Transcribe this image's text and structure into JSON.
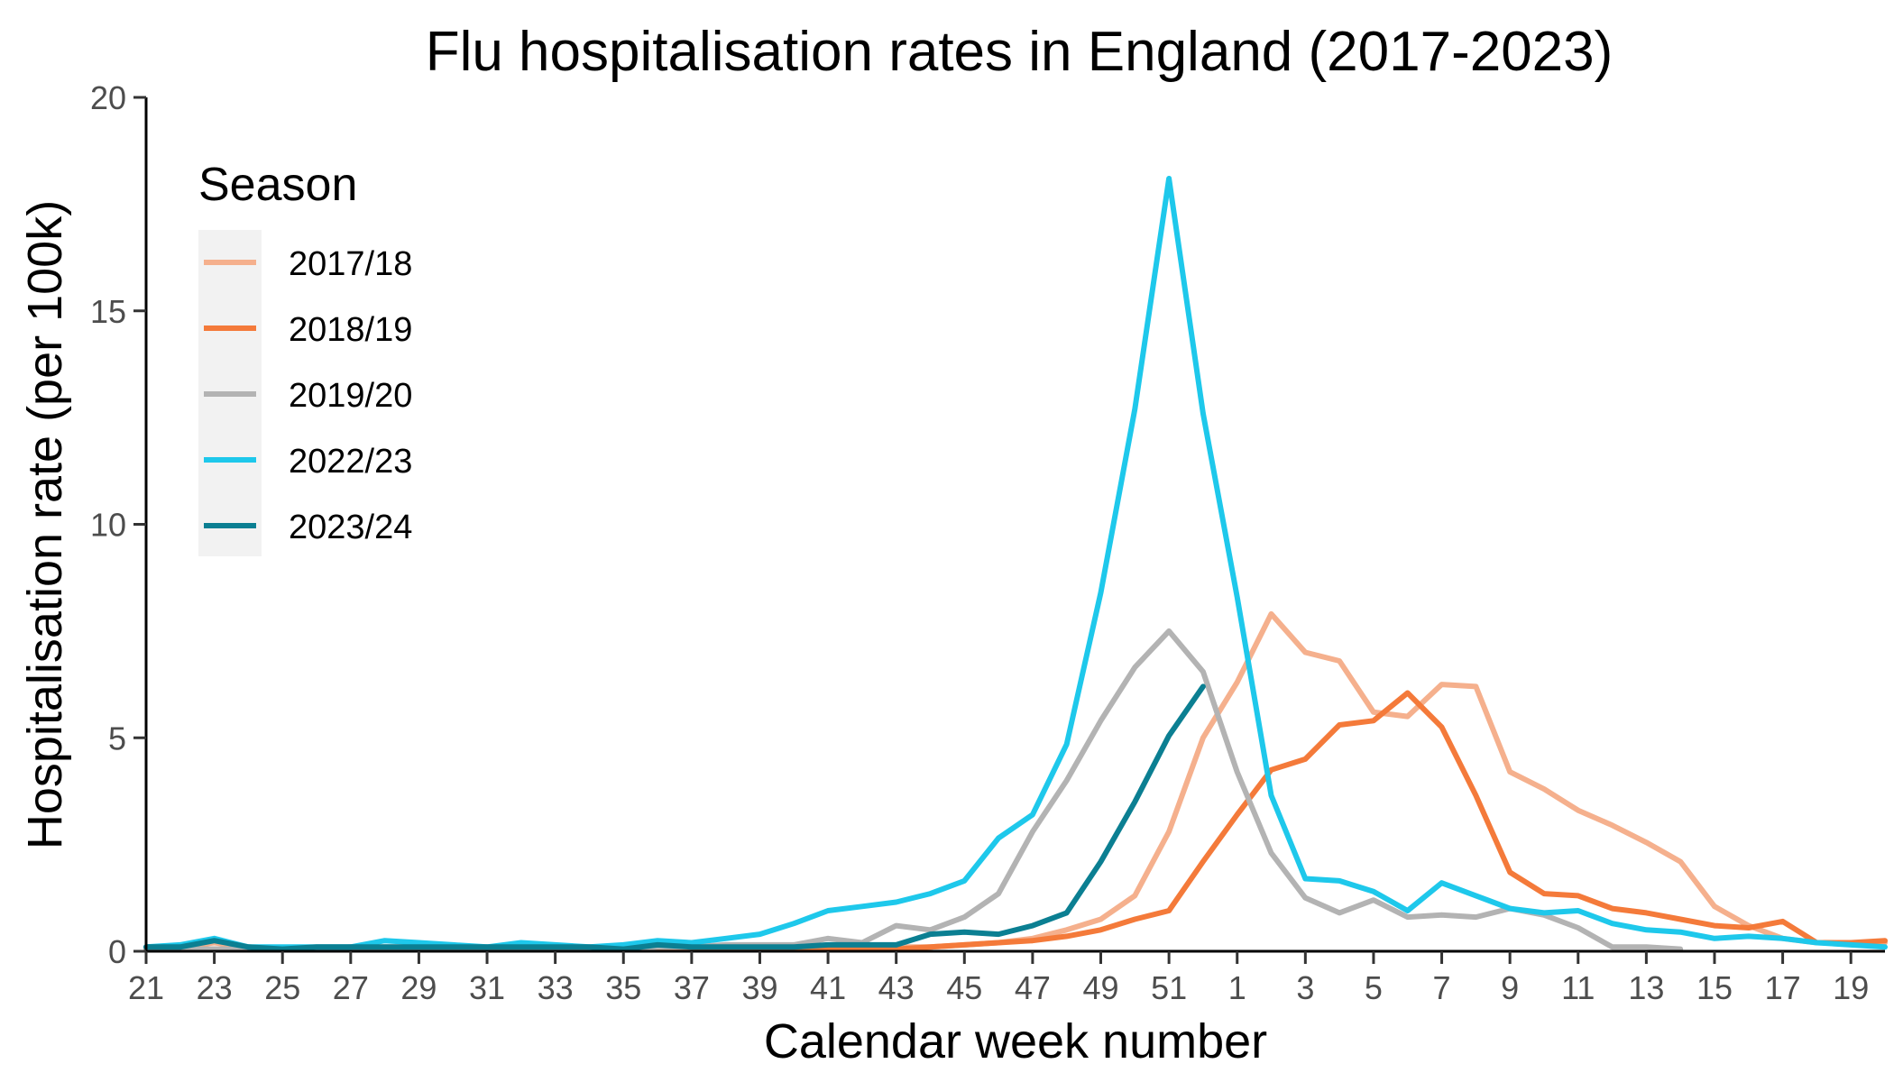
{
  "chart_data": {
    "type": "line",
    "title": "Flu hospitalisation rates in England (2017-2023)",
    "xlabel": "Calendar week number",
    "ylabel": "Hospitalisation rate (per 100k)",
    "ylim": [
      0,
      20
    ],
    "yticks": [
      0,
      5,
      10,
      15,
      20
    ],
    "grid": false,
    "legend": {
      "title": "Season",
      "position": "top-left"
    },
    "x_weeks": [
      21,
      22,
      23,
      24,
      25,
      26,
      27,
      28,
      29,
      30,
      31,
      32,
      33,
      34,
      35,
      36,
      37,
      38,
      39,
      40,
      41,
      42,
      43,
      44,
      45,
      46,
      47,
      48,
      49,
      50,
      51,
      52,
      1,
      2,
      3,
      4,
      5,
      6,
      7,
      8,
      9,
      10,
      11,
      12,
      13,
      14,
      15,
      16,
      17,
      18,
      19,
      20
    ],
    "xtick_labels": [
      "21",
      "23",
      "25",
      "27",
      "29",
      "31",
      "33",
      "35",
      "37",
      "39",
      "41",
      "43",
      "45",
      "47",
      "49",
      "51",
      "1",
      "3",
      "5",
      "7",
      "9",
      "11",
      "13",
      "15",
      "17",
      "19"
    ],
    "series": [
      {
        "name": "2017/18",
        "color": "#f5b08d",
        "values": [
          0.1,
          0.1,
          0.2,
          0.1,
          0.05,
          0.05,
          0.1,
          0.1,
          0.1,
          0.05,
          0.05,
          0.05,
          0.05,
          0.05,
          0.05,
          0.1,
          0.05,
          0.05,
          0.05,
          0.1,
          0.1,
          0.1,
          0.1,
          0.1,
          0.15,
          0.2,
          0.3,
          0.5,
          0.75,
          1.3,
          2.8,
          5.0,
          6.3,
          7.9,
          7.0,
          6.8,
          5.6,
          5.5,
          6.25,
          6.2,
          4.2,
          3.8,
          3.3,
          2.95,
          2.55,
          2.1,
          1.05,
          0.6,
          0.3,
          0.2,
          0.2,
          0.2
        ]
      },
      {
        "name": "2018/19",
        "color": "#f47a3a",
        "values": [
          0.05,
          0.05,
          0.05,
          0.05,
          0.05,
          0.05,
          0.05,
          0.05,
          0.05,
          0.05,
          0.05,
          0.05,
          0.05,
          0.05,
          0.05,
          0.05,
          0.05,
          0.05,
          0.05,
          0.05,
          0.05,
          0.05,
          0.05,
          0.1,
          0.15,
          0.2,
          0.25,
          0.35,
          0.5,
          0.75,
          0.95,
          2.1,
          3.2,
          4.25,
          4.5,
          5.3,
          5.4,
          6.05,
          5.25,
          3.65,
          1.85,
          1.35,
          1.3,
          1.0,
          0.9,
          0.75,
          0.6,
          0.55,
          0.7,
          0.2,
          0.2,
          0.25
        ]
      },
      {
        "name": "2019/20",
        "color": "#b3b3b3",
        "values": [
          0.05,
          0.05,
          0.05,
          0.05,
          0.05,
          0.05,
          0.05,
          0.05,
          0.05,
          0.05,
          0.05,
          0.05,
          0.05,
          0.05,
          0.05,
          0.1,
          0.1,
          0.15,
          0.15,
          0.15,
          0.3,
          0.2,
          0.6,
          0.5,
          0.8,
          1.35,
          2.8,
          4.0,
          5.4,
          6.65,
          7.5,
          6.55,
          4.2,
          2.3,
          1.25,
          0.9,
          1.2,
          0.8,
          0.85,
          0.8,
          1.0,
          0.85,
          0.55,
          0.1,
          0.1,
          0.05
        ]
      },
      {
        "name": "2022/23",
        "color": "#1ec8eb",
        "values": [
          0.1,
          0.15,
          0.3,
          0.1,
          0.1,
          0.1,
          0.1,
          0.25,
          0.2,
          0.15,
          0.1,
          0.2,
          0.15,
          0.1,
          0.15,
          0.25,
          0.2,
          0.3,
          0.4,
          0.65,
          0.95,
          1.05,
          1.15,
          1.35,
          1.65,
          2.65,
          3.2,
          4.85,
          8.4,
          12.7,
          18.1,
          12.6,
          8.3,
          3.65,
          1.7,
          1.65,
          1.4,
          0.95,
          1.6,
          1.3,
          1.0,
          0.9,
          0.95,
          0.65,
          0.5,
          0.45,
          0.3,
          0.35,
          0.3,
          0.2,
          0.15,
          0.1
        ]
      },
      {
        "name": "2023/24",
        "color": "#0b7f92",
        "values": [
          0.1,
          0.1,
          0.25,
          0.1,
          0.05,
          0.1,
          0.1,
          0.1,
          0.1,
          0.1,
          0.1,
          0.1,
          0.1,
          0.1,
          0.05,
          0.15,
          0.1,
          0.1,
          0.1,
          0.1,
          0.15,
          0.15,
          0.15,
          0.4,
          0.45,
          0.4,
          0.6,
          0.9,
          2.1,
          3.5,
          5.05,
          6.2
        ]
      }
    ]
  }
}
